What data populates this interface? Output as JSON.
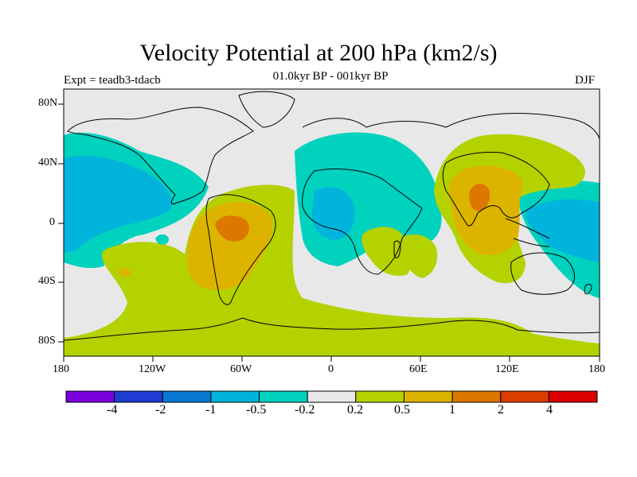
{
  "title": "Velocity Potential at 200 hPa (km2/s)",
  "subtitle": "01.0kyr BP - 001kyr BP",
  "left_label": "Expt = teadb3-tdacb",
  "right_label": "DJF",
  "axes": {
    "x_ticks": [
      "180",
      "120W",
      "60W",
      "0",
      "60E",
      "120E",
      "180"
    ],
    "y_ticks": [
      "80N",
      "40N",
      "0",
      "40S",
      "80S"
    ]
  },
  "colorbar": {
    "colors": [
      "#7a00dc",
      "#1e3cd2",
      "#0a78d2",
      "#00b4dc",
      "#00d2be",
      "#e8e8e8",
      "#b4d200",
      "#dcb400",
      "#dc7800",
      "#dc3c00",
      "#dc0000"
    ],
    "labels": [
      "-4",
      "-2",
      "-1",
      "-0.5",
      "-0.2",
      "0.2",
      "0.5",
      "1",
      "2",
      "4"
    ]
  },
  "map_colors": {
    "background": "#e8e8e8",
    "neg_weak": "#00d2be",
    "neg_mod": "#00b4dc",
    "pos_weak": "#b4d200",
    "pos_mod": "#dcb400",
    "pos_strong": "#dc7800"
  }
}
